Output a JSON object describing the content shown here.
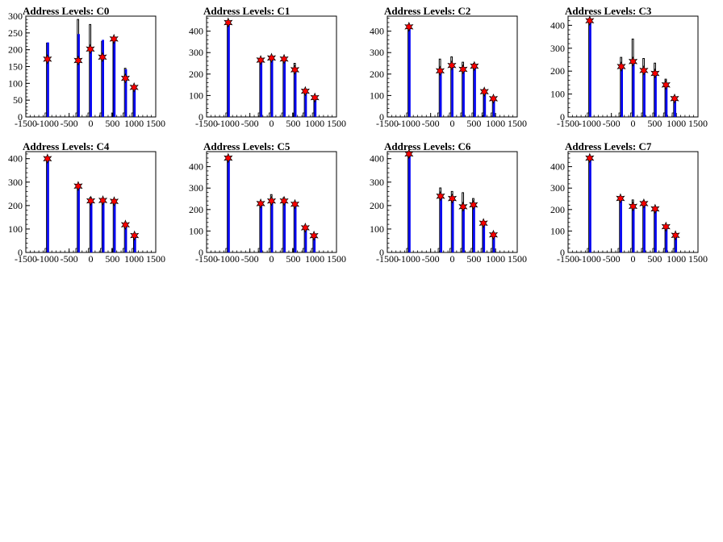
{
  "chart_data": [
    {
      "type": "histogram",
      "title": "Address Levels: C0",
      "xlim": [
        -1500,
        1500
      ],
      "ylim": [
        0,
        300
      ],
      "xticks": [
        "-1500",
        "-1000",
        "-500",
        "0",
        "500",
        "1000",
        "1500"
      ],
      "yticks": [
        "0",
        "50",
        "100",
        "150",
        "200",
        "250",
        "300"
      ],
      "yticks_values": [
        0,
        50,
        100,
        150,
        200,
        250,
        300
      ],
      "xticks_values": [
        -1500,
        -1000,
        -500,
        0,
        500,
        1000,
        1500
      ],
      "black_bars": [
        {
          "x": -1000,
          "y": 220
        },
        {
          "x": -290,
          "y": 290
        },
        {
          "x": -10,
          "y": 275
        },
        {
          "x": 270,
          "y": 225
        },
        {
          "x": 535,
          "y": 235
        },
        {
          "x": 800,
          "y": 145
        },
        {
          "x": 1000,
          "y": 88
        }
      ],
      "blue_bars": [
        {
          "x": -990,
          "y": 220
        },
        {
          "x": -280,
          "y": 245
        },
        {
          "x": 0,
          "y": 200
        },
        {
          "x": 280,
          "y": 228
        },
        {
          "x": 545,
          "y": 232
        },
        {
          "x": 810,
          "y": 140
        },
        {
          "x": 1010,
          "y": 85
        }
      ],
      "markers": [
        {
          "x": -1000,
          "y": 172
        },
        {
          "x": -290,
          "y": 168
        },
        {
          "x": -10,
          "y": 202
        },
        {
          "x": 270,
          "y": 178
        },
        {
          "x": 535,
          "y": 232
        },
        {
          "x": 800,
          "y": 115
        },
        {
          "x": 1000,
          "y": 88
        }
      ]
    },
    {
      "type": "histogram",
      "title": "Address Levels: C1",
      "xlim": [
        -1500,
        1500
      ],
      "ylim": [
        0,
        470
      ],
      "xticks": [
        "-1500",
        "-1000",
        "-500",
        "0",
        "500",
        "1000",
        "1500"
      ],
      "yticks": [
        "0",
        "100",
        "200",
        "300",
        "400"
      ],
      "yticks_values": [
        0,
        100,
        200,
        300,
        400
      ],
      "xticks_values": [
        -1500,
        -1000,
        -500,
        0,
        500,
        1000,
        1500
      ],
      "black_bars": [
        {
          "x": -1000,
          "y": 440
        },
        {
          "x": -250,
          "y": 265
        },
        {
          "x": 0,
          "y": 280
        },
        {
          "x": 290,
          "y": 275
        },
        {
          "x": 540,
          "y": 250
        },
        {
          "x": 780,
          "y": 130
        },
        {
          "x": 1000,
          "y": 95
        }
      ],
      "blue_bars": [
        {
          "x": -990,
          "y": 440
        },
        {
          "x": -240,
          "y": 265
        },
        {
          "x": 10,
          "y": 275
        },
        {
          "x": 300,
          "y": 270
        },
        {
          "x": 550,
          "y": 225
        },
        {
          "x": 790,
          "y": 120
        },
        {
          "x": 1010,
          "y": 90
        }
      ],
      "markers": [
        {
          "x": -1000,
          "y": 440
        },
        {
          "x": -250,
          "y": 265
        },
        {
          "x": 0,
          "y": 275
        },
        {
          "x": 290,
          "y": 270
        },
        {
          "x": 540,
          "y": 220
        },
        {
          "x": 780,
          "y": 120
        },
        {
          "x": 1000,
          "y": 90
        }
      ]
    },
    {
      "type": "histogram",
      "title": "Address Levels: C2",
      "xlim": [
        -1500,
        1500
      ],
      "ylim": [
        0,
        470
      ],
      "xticks": [
        "-1500",
        "-1000",
        "-500",
        "0",
        "500",
        "1000",
        "1500"
      ],
      "yticks": [
        "0",
        "100",
        "200",
        "300",
        "400"
      ],
      "yticks_values": [
        0,
        100,
        200,
        300,
        400
      ],
      "xticks_values": [
        -1500,
        -1000,
        -500,
        0,
        500,
        1000,
        1500
      ],
      "black_bars": [
        {
          "x": -1000,
          "y": 430
        },
        {
          "x": -280,
          "y": 270
        },
        {
          "x": -10,
          "y": 280
        },
        {
          "x": 250,
          "y": 255
        },
        {
          "x": 510,
          "y": 250
        },
        {
          "x": 740,
          "y": 130
        },
        {
          "x": 950,
          "y": 90
        }
      ],
      "blue_bars": [
        {
          "x": -990,
          "y": 420
        },
        {
          "x": -270,
          "y": 215
        },
        {
          "x": 0,
          "y": 240
        },
        {
          "x": 260,
          "y": 220
        },
        {
          "x": 520,
          "y": 235
        },
        {
          "x": 750,
          "y": 115
        },
        {
          "x": 960,
          "y": 85
        }
      ],
      "markers": [
        {
          "x": -1000,
          "y": 420
        },
        {
          "x": -280,
          "y": 215
        },
        {
          "x": -10,
          "y": 240
        },
        {
          "x": 250,
          "y": 222
        },
        {
          "x": 510,
          "y": 237
        },
        {
          "x": 740,
          "y": 118
        },
        {
          "x": 950,
          "y": 85
        }
      ]
    },
    {
      "type": "histogram",
      "title": "Address Levels: C3",
      "xlim": [
        -1500,
        1500
      ],
      "ylim": [
        0,
        440
      ],
      "xticks": [
        "-1500",
        "-1000",
        "-500",
        "0",
        "500",
        "1000",
        "1500"
      ],
      "yticks": [
        "0",
        "100",
        "200",
        "300",
        "400"
      ],
      "yticks_values": [
        0,
        100,
        200,
        300,
        400
      ],
      "xticks_values": [
        -1500,
        -1000,
        -500,
        0,
        500,
        1000,
        1500
      ],
      "black_bars": [
        {
          "x": -1000,
          "y": 425
        },
        {
          "x": -270,
          "y": 260
        },
        {
          "x": 0,
          "y": 340
        },
        {
          "x": 250,
          "y": 255
        },
        {
          "x": 510,
          "y": 235
        },
        {
          "x": 760,
          "y": 165
        },
        {
          "x": 960,
          "y": 90
        }
      ],
      "blue_bars": [
        {
          "x": -990,
          "y": 420
        },
        {
          "x": -260,
          "y": 220
        },
        {
          "x": 10,
          "y": 240
        },
        {
          "x": 260,
          "y": 205
        },
        {
          "x": 520,
          "y": 190
        },
        {
          "x": 770,
          "y": 140
        },
        {
          "x": 970,
          "y": 80
        }
      ],
      "markers": [
        {
          "x": -1000,
          "y": 420
        },
        {
          "x": -270,
          "y": 220
        },
        {
          "x": 0,
          "y": 242
        },
        {
          "x": 250,
          "y": 203
        },
        {
          "x": 510,
          "y": 190
        },
        {
          "x": 760,
          "y": 140
        },
        {
          "x": 960,
          "y": 80
        }
      ]
    },
    {
      "type": "histogram",
      "title": "Address Levels: C4",
      "xlim": [
        -1500,
        1500
      ],
      "ylim": [
        0,
        430
      ],
      "xticks": [
        "-1500",
        "-1000",
        "-500",
        "0",
        "500",
        "1000",
        "1500"
      ],
      "yticks": [
        "0",
        "100",
        "200",
        "300",
        "400"
      ],
      "yticks_values": [
        0,
        100,
        200,
        300,
        400
      ],
      "xticks_values": [
        -1500,
        -1000,
        -500,
        0,
        500,
        1000,
        1500
      ],
      "black_bars": [
        {
          "x": -1000,
          "y": 405
        },
        {
          "x": -290,
          "y": 285
        },
        {
          "x": 0,
          "y": 235
        },
        {
          "x": 280,
          "y": 230
        },
        {
          "x": 540,
          "y": 225
        },
        {
          "x": 800,
          "y": 120
        },
        {
          "x": 1010,
          "y": 75
        }
      ],
      "blue_bars": [
        {
          "x": -990,
          "y": 400
        },
        {
          "x": -280,
          "y": 280
        },
        {
          "x": 10,
          "y": 220
        },
        {
          "x": 290,
          "y": 222
        },
        {
          "x": 550,
          "y": 218
        },
        {
          "x": 810,
          "y": 118
        },
        {
          "x": 1020,
          "y": 72
        }
      ],
      "markers": [
        {
          "x": -1000,
          "y": 400
        },
        {
          "x": -290,
          "y": 283
        },
        {
          "x": 0,
          "y": 220
        },
        {
          "x": 280,
          "y": 222
        },
        {
          "x": 540,
          "y": 218
        },
        {
          "x": 800,
          "y": 118
        },
        {
          "x": 1010,
          "y": 72
        }
      ]
    },
    {
      "type": "histogram",
      "title": "Address Levels: C5",
      "xlim": [
        -1500,
        1500
      ],
      "ylim": [
        0,
        470
      ],
      "xticks": [
        "-1500",
        "-1000",
        "-500",
        "0",
        "500",
        "1000",
        "1500"
      ],
      "yticks": [
        "0",
        "100",
        "200",
        "300",
        "400"
      ],
      "yticks_values": [
        0,
        100,
        200,
        300,
        400
      ],
      "xticks_values": [
        -1500,
        -1000,
        -500,
        0,
        500,
        1000,
        1500
      ],
      "black_bars": [
        {
          "x": -1000,
          "y": 450
        },
        {
          "x": -250,
          "y": 235
        },
        {
          "x": 0,
          "y": 270
        },
        {
          "x": 290,
          "y": 255
        },
        {
          "x": 540,
          "y": 235
        },
        {
          "x": 780,
          "y": 125
        },
        {
          "x": 980,
          "y": 80
        }
      ],
      "blue_bars": [
        {
          "x": -990,
          "y": 440
        },
        {
          "x": -240,
          "y": 230
        },
        {
          "x": 10,
          "y": 245
        },
        {
          "x": 300,
          "y": 240
        },
        {
          "x": 550,
          "y": 230
        },
        {
          "x": 790,
          "y": 115
        },
        {
          "x": 990,
          "y": 80
        }
      ],
      "markers": [
        {
          "x": -1000,
          "y": 440
        },
        {
          "x": -250,
          "y": 228
        },
        {
          "x": 0,
          "y": 240
        },
        {
          "x": 290,
          "y": 240
        },
        {
          "x": 540,
          "y": 225
        },
        {
          "x": 780,
          "y": 115
        },
        {
          "x": 980,
          "y": 78
        }
      ]
    },
    {
      "type": "histogram",
      "title": "Address Levels: C6",
      "xlim": [
        -1500,
        1500
      ],
      "ylim": [
        0,
        430
      ],
      "xticks": [
        "-1500",
        "-1000",
        "-500",
        "0",
        "500",
        "1000",
        "1500"
      ],
      "yticks": [
        "0",
        "100",
        "200",
        "300",
        "400"
      ],
      "yticks_values": [
        0,
        100,
        200,
        300,
        400
      ],
      "xticks_values": [
        -1500,
        -1000,
        -500,
        0,
        500,
        1000,
        1500
      ],
      "black_bars": [
        {
          "x": -1000,
          "y": 425
        },
        {
          "x": -270,
          "y": 275
        },
        {
          "x": 0,
          "y": 260
        },
        {
          "x": 250,
          "y": 255
        },
        {
          "x": 490,
          "y": 230
        },
        {
          "x": 720,
          "y": 130
        },
        {
          "x": 950,
          "y": 85
        }
      ],
      "blue_bars": [
        {
          "x": -990,
          "y": 420
        },
        {
          "x": -260,
          "y": 240
        },
        {
          "x": 10,
          "y": 230
        },
        {
          "x": 260,
          "y": 195
        },
        {
          "x": 500,
          "y": 205
        },
        {
          "x": 730,
          "y": 125
        },
        {
          "x": 960,
          "y": 78
        }
      ],
      "markers": [
        {
          "x": -1000,
          "y": 420
        },
        {
          "x": -270,
          "y": 240
        },
        {
          "x": 0,
          "y": 230
        },
        {
          "x": 250,
          "y": 195
        },
        {
          "x": 490,
          "y": 203
        },
        {
          "x": 720,
          "y": 125
        },
        {
          "x": 950,
          "y": 75
        }
      ]
    },
    {
      "type": "histogram",
      "title": "Address Levels: C7",
      "xlim": [
        -1500,
        1500
      ],
      "ylim": [
        0,
        470
      ],
      "xticks": [
        "-1500",
        "-1000",
        "-500",
        "0",
        "500",
        "1000",
        "1500"
      ],
      "yticks": [
        "0",
        "100",
        "200",
        "300",
        "400"
      ],
      "yticks_values": [
        0,
        100,
        200,
        300,
        400
      ],
      "xticks_values": [
        -1500,
        -1000,
        -500,
        0,
        500,
        1000,
        1500
      ],
      "black_bars": [
        {
          "x": -1000,
          "y": 445
        },
        {
          "x": -290,
          "y": 255
        },
        {
          "x": 0,
          "y": 245
        },
        {
          "x": 250,
          "y": 240
        },
        {
          "x": 510,
          "y": 205
        },
        {
          "x": 760,
          "y": 125
        },
        {
          "x": 980,
          "y": 85
        }
      ],
      "blue_bars": [
        {
          "x": -990,
          "y": 440
        },
        {
          "x": -280,
          "y": 250
        },
        {
          "x": 10,
          "y": 215
        },
        {
          "x": 260,
          "y": 228
        },
        {
          "x": 520,
          "y": 200
        },
        {
          "x": 770,
          "y": 120
        },
        {
          "x": 990,
          "y": 80
        }
      ],
      "markers": [
        {
          "x": -1000,
          "y": 440
        },
        {
          "x": -290,
          "y": 252
        },
        {
          "x": 0,
          "y": 215
        },
        {
          "x": 250,
          "y": 228
        },
        {
          "x": 510,
          "y": 203
        },
        {
          "x": 760,
          "y": 120
        },
        {
          "x": 980,
          "y": 80
        }
      ]
    }
  ],
  "colors": {
    "black_hist": "#000000",
    "blue_hist": "#0000ff",
    "marker_fill": "#ff0000",
    "marker_stroke": "#000000"
  }
}
